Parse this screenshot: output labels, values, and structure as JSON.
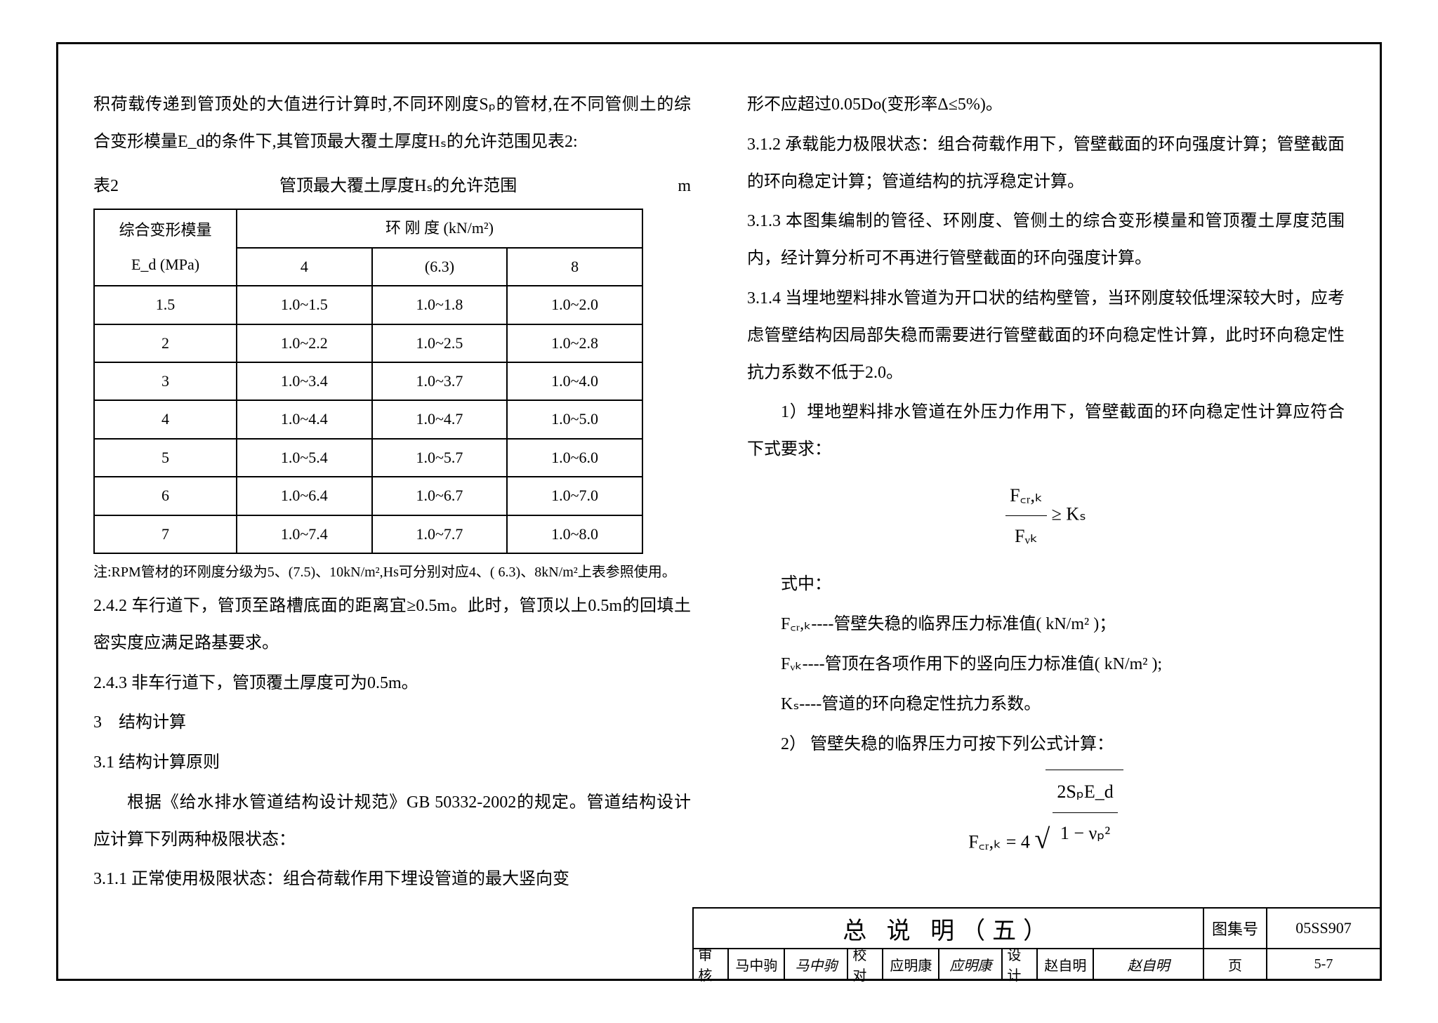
{
  "left": {
    "p1": "积荷载传递到管顶处的大值进行计算时,不同环刚度Sₚ的管材,在不同管侧土的综合变形模量E_d的条件下,其管顶最大覆土厚度Hₛ的允许范围见表2:",
    "table_caption_left": "表2",
    "table_caption_mid": "管顶最大覆土厚度Hₛ的允许范围",
    "table_caption_right": "m",
    "th_modulus_top": "综合变形模量",
    "th_modulus_bot": "E_d (MPa)",
    "th_stiff": "环 刚 度   (kN/m²)",
    "cols": [
      "4",
      "(6.3)",
      "8"
    ],
    "rows": [
      [
        "1.5",
        "1.0~1.5",
        "1.0~1.8",
        "1.0~2.0"
      ],
      [
        "2",
        "1.0~2.2",
        "1.0~2.5",
        "1.0~2.8"
      ],
      [
        "3",
        "1.0~3.4",
        "1.0~3.7",
        "1.0~4.0"
      ],
      [
        "4",
        "1.0~4.4",
        "1.0~4.7",
        "1.0~5.0"
      ],
      [
        "5",
        "1.0~5.4",
        "1.0~5.7",
        "1.0~6.0"
      ],
      [
        "6",
        "1.0~6.4",
        "1.0~6.7",
        "1.0~7.0"
      ],
      [
        "7",
        "1.0~7.4",
        "1.0~7.7",
        "1.0~8.0"
      ]
    ],
    "note": "注:RPM管材的环刚度分级为5、(7.5)、10kN/m²,Hs可分别对应4、( 6.3)、8kN/m²上表参照使用。",
    "p242": "2.4.2  车行道下，管顶至路槽底面的距离宜≥0.5m。此时，管顶以上0.5m的回填土密实度应满足路基要求。",
    "p243": "2.4.3  非车行道下，管顶覆土厚度可为0.5m。",
    "h3": "3　结构计算",
    "h31": "3.1  结构计算原则",
    "p31body": "根据《给水排水管道结构设计规范》GB  50332-2002的规定。管道结构设计应计算下列两种极限状态：",
    "p311": "3.1.1  正常使用极限状态：组合荷载作用下埋设管道的最大竖向变"
  },
  "right": {
    "p0": "形不应超过0.05Do(变形率Δ≤5%)。",
    "p312": "3.1.2  承载能力极限状态：组合荷载作用下，管壁截面的环向强度计算；管壁截面的环向稳定计算；管道结构的抗浮稳定计算。",
    "p313": "3.1.3  本图集编制的管径、环刚度、管侧土的综合变形模量和管顶覆土厚度范围内，经计算分析可不再进行管壁截面的环向强度计算。",
    "p314": "3.1.4  当埋地塑料排水管道为开口状的结构壁管，当环刚度较低埋深较大时，应考虑管壁结构因局部失稳而需要进行管壁截面的环向稳定性计算，此时环向稳定性抗力系数不低于2.0。",
    "li1": "1）埋地塑料排水管道在外压力作用下，管壁截面的环向稳定性计算应符合下式要求：",
    "formula1_num": "F꜀ᵣ,ₖ",
    "formula1_den": "Fᵥₖ",
    "formula1_rhs": "≥  Kₛ",
    "shizhong": "式中：",
    "def1": "F꜀ᵣ,ₖ----管壁失稳的临界压力标准值( kN/m² )；",
    "def2": "Fᵥₖ----管顶在各项作用下的竖向压力标准值( kN/m² );",
    "def3": "Kₛ----管道的环向稳定性抗力系数。",
    "li2": "2） 管壁失稳的临界压力可按下列公式计算：",
    "formula2_lhs": "F꜀ᵣ,ₖ = 4",
    "formula2_num": "2SₚE_d",
    "formula2_den": "1 − νₚ²"
  },
  "titleblock": {
    "title": "总 说 明（五）",
    "lbl_tuji": "图集号",
    "val_tuji": "05SS907",
    "sh": "审核",
    "sh_name": "马中驹",
    "sh_sig": "马中驹",
    "jd": "校对",
    "jd_name": "应明康",
    "jd_sig": "应明康",
    "sj": "设计",
    "sj_name": "赵自明",
    "sj_sig": "赵自明",
    "page_lbl": "页",
    "page_val": "5-7"
  }
}
